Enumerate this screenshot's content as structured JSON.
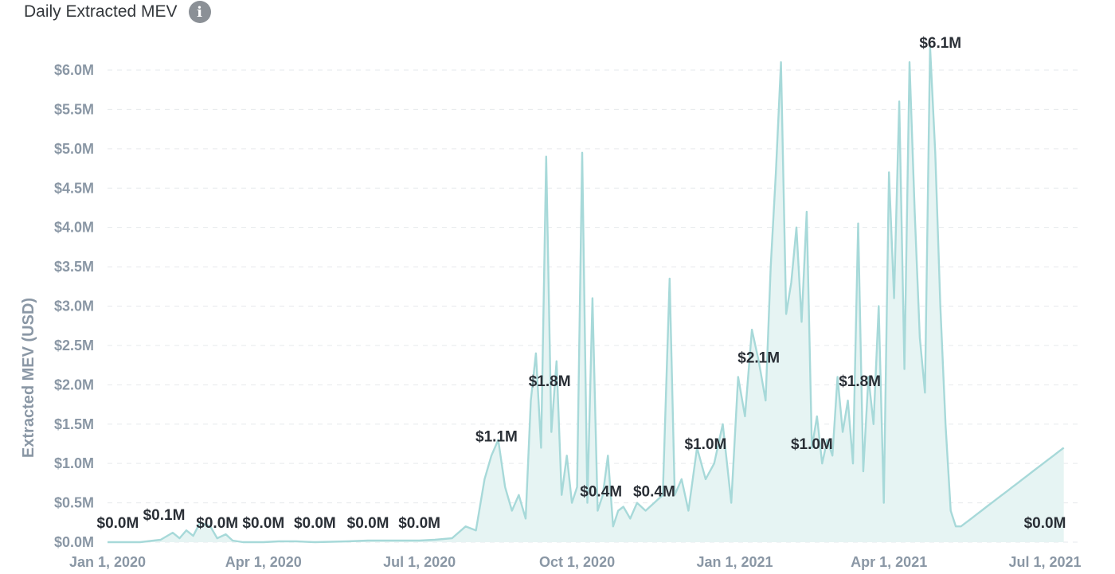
{
  "header": {
    "title": "Daily Extracted MEV",
    "info_icon": "info-icon"
  },
  "colors": {
    "line": "#a7d9d9",
    "area": "#e6f4f3",
    "axis_text": "#8a97a5",
    "label_text": "#2a2f36"
  },
  "chart_data": {
    "type": "area",
    "title": "Daily Extracted MEV",
    "ylabel": "Extracted MEV (USD)",
    "xlabel": "",
    "ylim": [
      0,
      6.0
    ],
    "xlim": [
      "2020-01-01",
      "2021-07-15"
    ],
    "grid": true,
    "yticks": [
      "$0.0M",
      "$0.5M",
      "$1.0M",
      "$1.5M",
      "$2.0M",
      "$2.5M",
      "$3.0M",
      "$3.5M",
      "$4.0M",
      "$4.5M",
      "$5.0M",
      "$5.5M",
      "$6.0M"
    ],
    "ytick_values": [
      0,
      0.5,
      1.0,
      1.5,
      2.0,
      2.5,
      3.0,
      3.5,
      4.0,
      4.5,
      5.0,
      5.5,
      6.0
    ],
    "xticks": [
      {
        "date": "2020-01-01",
        "label": "Jan 1, 2020"
      },
      {
        "date": "2020-04-01",
        "label": "Apr 1, 2020"
      },
      {
        "date": "2020-07-01",
        "label": "Jul 1, 2020"
      },
      {
        "date": "2020-10-01",
        "label": "Oct 1, 2020"
      },
      {
        "date": "2021-01-01",
        "label": "Jan 1, 2021"
      },
      {
        "date": "2021-04-01",
        "label": "Apr 1, 2021"
      },
      {
        "date": "2021-07-01",
        "label": "Jul 1, 2021"
      }
    ],
    "series": [
      {
        "x": [
          "2020-01-01",
          "2020-01-20",
          "2020-02-01",
          "2020-02-08",
          "2020-02-12",
          "2020-02-16",
          "2020-02-20",
          "2020-02-24",
          "2020-03-01",
          "2020-03-05",
          "2020-03-10",
          "2020-03-14",
          "2020-03-20",
          "2020-04-01",
          "2020-04-10",
          "2020-04-20",
          "2020-05-01",
          "2020-05-20",
          "2020-06-01",
          "2020-06-20",
          "2020-07-01",
          "2020-07-10",
          "2020-07-20",
          "2020-07-28",
          "2020-08-03",
          "2020-08-08",
          "2020-08-12",
          "2020-08-16",
          "2020-08-20",
          "2020-08-24",
          "2020-08-28",
          "2020-09-01",
          "2020-09-04",
          "2020-09-07",
          "2020-09-10",
          "2020-09-13",
          "2020-09-16",
          "2020-09-19",
          "2020-09-22",
          "2020-09-25",
          "2020-09-28",
          "2020-10-01",
          "2020-10-04",
          "2020-10-07",
          "2020-10-10",
          "2020-10-13",
          "2020-10-16",
          "2020-10-19",
          "2020-10-22",
          "2020-10-25",
          "2020-10-28",
          "2020-11-01",
          "2020-11-05",
          "2020-11-10",
          "2020-11-15",
          "2020-11-20",
          "2020-11-24",
          "2020-11-27",
          "2020-12-01",
          "2020-12-05",
          "2020-12-10",
          "2020-12-15",
          "2020-12-20",
          "2020-12-25",
          "2020-12-30",
          "2021-01-03",
          "2021-01-07",
          "2021-01-11",
          "2021-01-15",
          "2021-01-19",
          "2021-01-22",
          "2021-01-25",
          "2021-01-28",
          "2021-01-31",
          "2021-02-03",
          "2021-02-06",
          "2021-02-09",
          "2021-02-12",
          "2021-02-15",
          "2021-02-18",
          "2021-02-21",
          "2021-02-24",
          "2021-02-27",
          "2021-03-02",
          "2021-03-05",
          "2021-03-08",
          "2021-03-11",
          "2021-03-14",
          "2021-03-17",
          "2021-03-20",
          "2021-03-23",
          "2021-03-26",
          "2021-03-29",
          "2021-04-01",
          "2021-04-04",
          "2021-04-07",
          "2021-04-10",
          "2021-04-13",
          "2021-04-16",
          "2021-04-19",
          "2021-04-22",
          "2021-04-25",
          "2021-04-28",
          "2021-05-01",
          "2021-05-04",
          "2021-05-07",
          "2021-05-10",
          "2021-05-13",
          "2021-05-16",
          "2021-05-19",
          "2021-05-22",
          "2021-05-25",
          "2021-05-28",
          "2021-05-31",
          "2021-06-03",
          "2021-06-06",
          "2021-06-09",
          "2021-06-12",
          "2021-06-15",
          "2021-06-18",
          "2021-06-21",
          "2021-06-24",
          "2021-06-27",
          "2021-06-30",
          "2021-07-03",
          "2021-07-06",
          "2021-07-09",
          "2021-07-12"
        ],
        "values": [
          0.0,
          0.0,
          0.03,
          0.12,
          0.05,
          0.15,
          0.08,
          0.25,
          0.2,
          0.05,
          0.1,
          0.02,
          0.0,
          0.0,
          0.01,
          0.01,
          0.0,
          0.01,
          0.02,
          0.02,
          0.02,
          0.03,
          0.05,
          0.2,
          0.15,
          0.8,
          1.1,
          1.3,
          0.7,
          0.4,
          0.6,
          0.3,
          1.8,
          2.4,
          1.2,
          4.9,
          1.4,
          2.3,
          0.6,
          1.1,
          0.5,
          0.7,
          4.95,
          0.5,
          3.1,
          0.4,
          0.6,
          1.1,
          0.2,
          0.4,
          0.45,
          0.3,
          0.5,
          0.4,
          0.5,
          0.6,
          3.35,
          0.6,
          0.8,
          0.4,
          1.2,
          0.8,
          1.0,
          1.5,
          0.5,
          2.1,
          1.6,
          2.7,
          2.3,
          1.8,
          3.5,
          4.7,
          6.1,
          2.9,
          3.3,
          4.0,
          2.8,
          4.2,
          1.2,
          1.6,
          1.0,
          1.3,
          1.1,
          2.1,
          1.4,
          1.8,
          1.0,
          4.05,
          0.9,
          2.1,
          1.5,
          3.0,
          0.5,
          4.7,
          3.1,
          5.6,
          2.2,
          6.1,
          4.2,
          2.6,
          1.9,
          6.3,
          4.95,
          3.0,
          1.5,
          0.4,
          0.2,
          0.2,
          0.25,
          0.3,
          0.35,
          0.4,
          0.45,
          0.5,
          0.55,
          0.6,
          0.65,
          0.7,
          0.75,
          0.8,
          0.85,
          0.9,
          0.95,
          1.0,
          1.05,
          1.1,
          1.15,
          1.2
        ]
      }
    ],
    "data_labels": [
      {
        "date": "2020-01-07",
        "text": "$0.0M",
        "value": 0.0
      },
      {
        "date": "2020-02-03",
        "text": "$0.1M",
        "value": 0.1
      },
      {
        "date": "2020-03-05",
        "text": "$0.0M",
        "value": 0.0
      },
      {
        "date": "2020-04-01",
        "text": "$0.0M",
        "value": 0.0
      },
      {
        "date": "2020-05-01",
        "text": "$0.0M",
        "value": 0.0
      },
      {
        "date": "2020-06-01",
        "text": "$0.0M",
        "value": 0.0
      },
      {
        "date": "2020-07-01",
        "text": "$0.0M",
        "value": 0.0
      },
      {
        "date": "2020-08-15",
        "text": "$1.1M",
        "value": 1.1
      },
      {
        "date": "2020-09-15",
        "text": "$1.8M",
        "value": 1.8
      },
      {
        "date": "2020-10-15",
        "text": "$0.4M",
        "value": 0.4
      },
      {
        "date": "2020-11-15",
        "text": "$0.4M",
        "value": 0.4
      },
      {
        "date": "2020-12-15",
        "text": "$1.0M",
        "value": 1.0
      },
      {
        "date": "2021-01-15",
        "text": "$2.1M",
        "value": 2.1
      },
      {
        "date": "2021-02-15",
        "text": "$1.0M",
        "value": 1.0
      },
      {
        "date": "2021-03-15",
        "text": "$1.8M",
        "value": 1.8
      },
      {
        "date": "2021-05-01",
        "text": "$6.1M",
        "value": 6.1
      },
      {
        "date": "2021-07-01",
        "text": "$0.0M",
        "value": 0.0
      }
    ]
  }
}
